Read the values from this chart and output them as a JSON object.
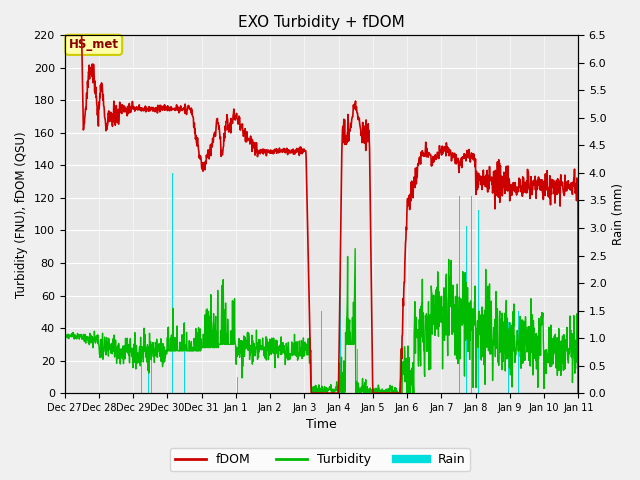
{
  "title": "EXO Turbidity + fDOM",
  "xlabel": "Time",
  "ylabel_left": "Turbidity (FNU), fDOM (QSU)",
  "ylabel_right": "Rain (mm)",
  "ylim_left": [
    0,
    220
  ],
  "ylim_right": [
    0.0,
    6.5
  ],
  "yticks_left": [
    0,
    20,
    40,
    60,
    80,
    100,
    120,
    140,
    160,
    180,
    200,
    220
  ],
  "yticks_right": [
    0.0,
    0.5,
    1.0,
    1.5,
    2.0,
    2.5,
    3.0,
    3.5,
    4.0,
    4.5,
    5.0,
    5.5,
    6.0,
    6.5
  ],
  "bg_color": "#e8e8e8",
  "fig_bg": "#f0f0f0",
  "fdom_color": "#cc0000",
  "turbidity_color": "#00bb00",
  "rain_color": "#00dddd",
  "annotation_text": "HS_met",
  "annotation_bg": "#ffffaa",
  "annotation_border": "#cccc00",
  "xtick_labels": [
    "Dec 27",
    "Dec 28",
    "Dec 29",
    "Dec 30",
    "Dec 31",
    "Jan 1",
    "Jan 2",
    "Jan 3",
    "Jan 4",
    "Jan 5",
    "Jan 6",
    "Jan 7",
    "Jan 8",
    "Jan 9",
    "Jan 10",
    "Jan 11"
  ]
}
